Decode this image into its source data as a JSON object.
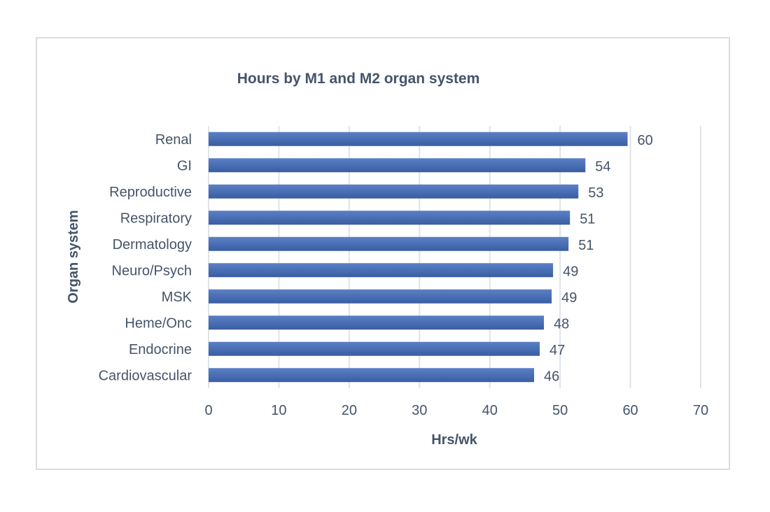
{
  "chart_data": {
    "type": "bar",
    "orientation": "horizontal",
    "title": "Hours by M1 and M2 organ system",
    "xlabel": "Hrs/wk",
    "ylabel": "Organ system",
    "categories": [
      "Renal",
      "GI",
      "Reproductive",
      "Respiratory",
      "Dermatology",
      "Neuro/Psych",
      "MSK",
      "Heme/Onc",
      "Endocrine",
      "Cardiovascular"
    ],
    "values": [
      59.6,
      53.6,
      52.6,
      51.4,
      51.2,
      49.0,
      48.8,
      47.7,
      47.1,
      46.3
    ],
    "data_labels": [
      "60",
      "54",
      "53",
      "51",
      "51",
      "49",
      "49",
      "48",
      "47",
      "46"
    ],
    "xlim": [
      0,
      70
    ],
    "x_ticks": [
      "0",
      "10",
      "20",
      "30",
      "40",
      "50",
      "60",
      "70"
    ],
    "grid": true,
    "bar_color": "#4a6fb5"
  }
}
